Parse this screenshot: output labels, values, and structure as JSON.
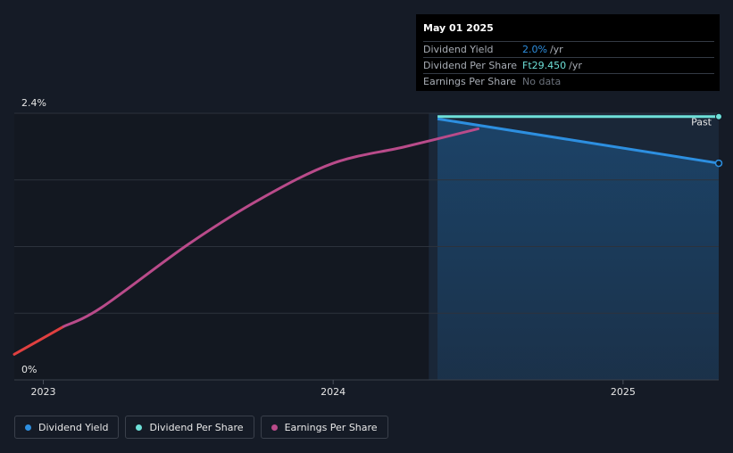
{
  "chart_data": {
    "type": "line",
    "x_ticks": [
      "2023",
      "2024",
      "2025"
    ],
    "x_tick_values": [
      2023.0,
      2024.0,
      2025.0
    ],
    "xlim": [
      2022.9,
      2025.33
    ],
    "y_ticks": [
      "2.4%",
      "0%"
    ],
    "y_tick_values": [
      2.4,
      0.0
    ],
    "ylim": [
      0,
      2.4
    ],
    "gridlines_y": [
      0.0,
      0.6,
      1.2,
      1.8,
      2.4
    ],
    "past_region_start": 2024.33,
    "past_label": "Past",
    "series": [
      {
        "name": "Dividend Yield",
        "color": "#2d8fe0",
        "points": [
          [
            2024.36,
            2.35
          ],
          [
            2025.33,
            1.95
          ]
        ]
      },
      {
        "name": "Dividend Per Share",
        "color": "#6ee0d8",
        "points": [
          [
            2024.36,
            2.37
          ],
          [
            2025.33,
            2.37
          ]
        ]
      },
      {
        "name": "Earnings Per Share",
        "color": "#b94b8a",
        "negative_color": "#e04040",
        "points": [
          [
            2022.9,
            0.23
          ],
          [
            2023.07,
            0.48
          ],
          [
            2023.2,
            0.65
          ],
          [
            2023.5,
            1.22
          ],
          [
            2023.75,
            1.63
          ],
          [
            2024.0,
            1.95
          ],
          [
            2024.25,
            2.1
          ],
          [
            2024.5,
            2.26
          ]
        ]
      }
    ],
    "tooltip": {
      "date": "May 01 2025",
      "rows": [
        {
          "label": "Dividend Yield",
          "value": "2.0%",
          "unit": " /yr",
          "color": "#2d8fe0"
        },
        {
          "label": "Dividend Per Share",
          "value": "Ft29.450",
          "unit": " /yr",
          "color": "#6ee0d8"
        },
        {
          "label": "Earnings Per Share",
          "value": "No data",
          "unit": "",
          "color": "#6b717b"
        }
      ]
    },
    "legend": [
      {
        "label": "Dividend Yield",
        "color": "#2d8fe0"
      },
      {
        "label": "Dividend Per Share",
        "color": "#6ee0d8"
      },
      {
        "label": "Earnings Per Share",
        "color": "#b94b8a"
      }
    ]
  }
}
